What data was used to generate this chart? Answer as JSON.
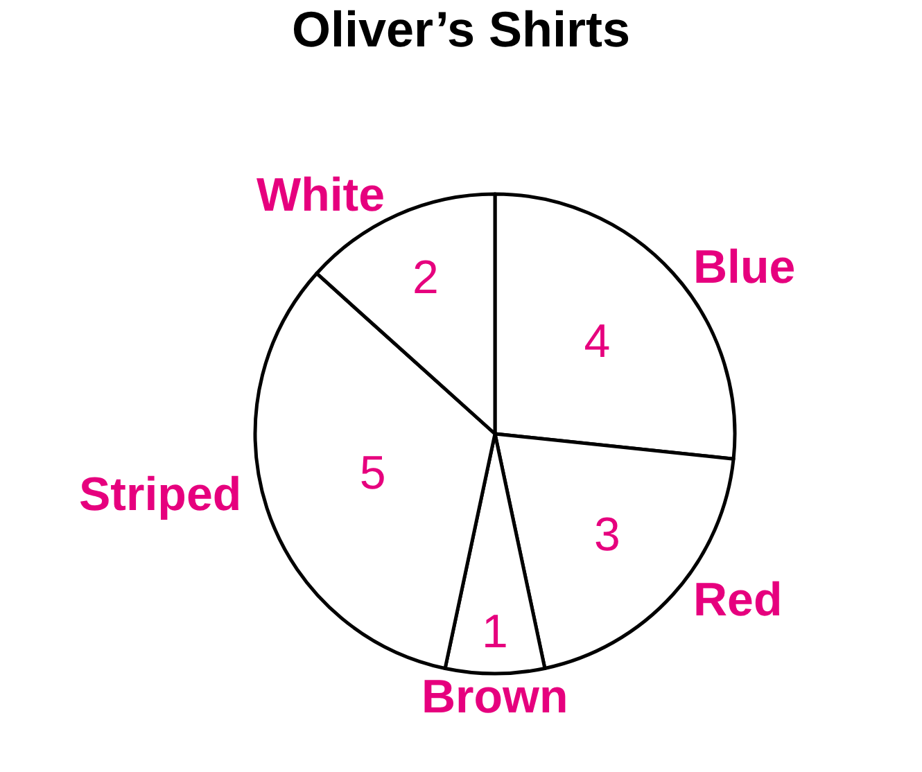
{
  "chart_data": {
    "type": "pie",
    "title": "Oliver’s Shirts",
    "categories": [
      "Blue",
      "Red",
      "Brown",
      "Striped",
      "White"
    ],
    "values": [
      4,
      3,
      1,
      5,
      2
    ],
    "colors": [
      "#ffffff",
      "#ffffff",
      "#ffffff",
      "#ffffff",
      "#ffffff"
    ],
    "data_labels": true,
    "legend": false
  }
}
